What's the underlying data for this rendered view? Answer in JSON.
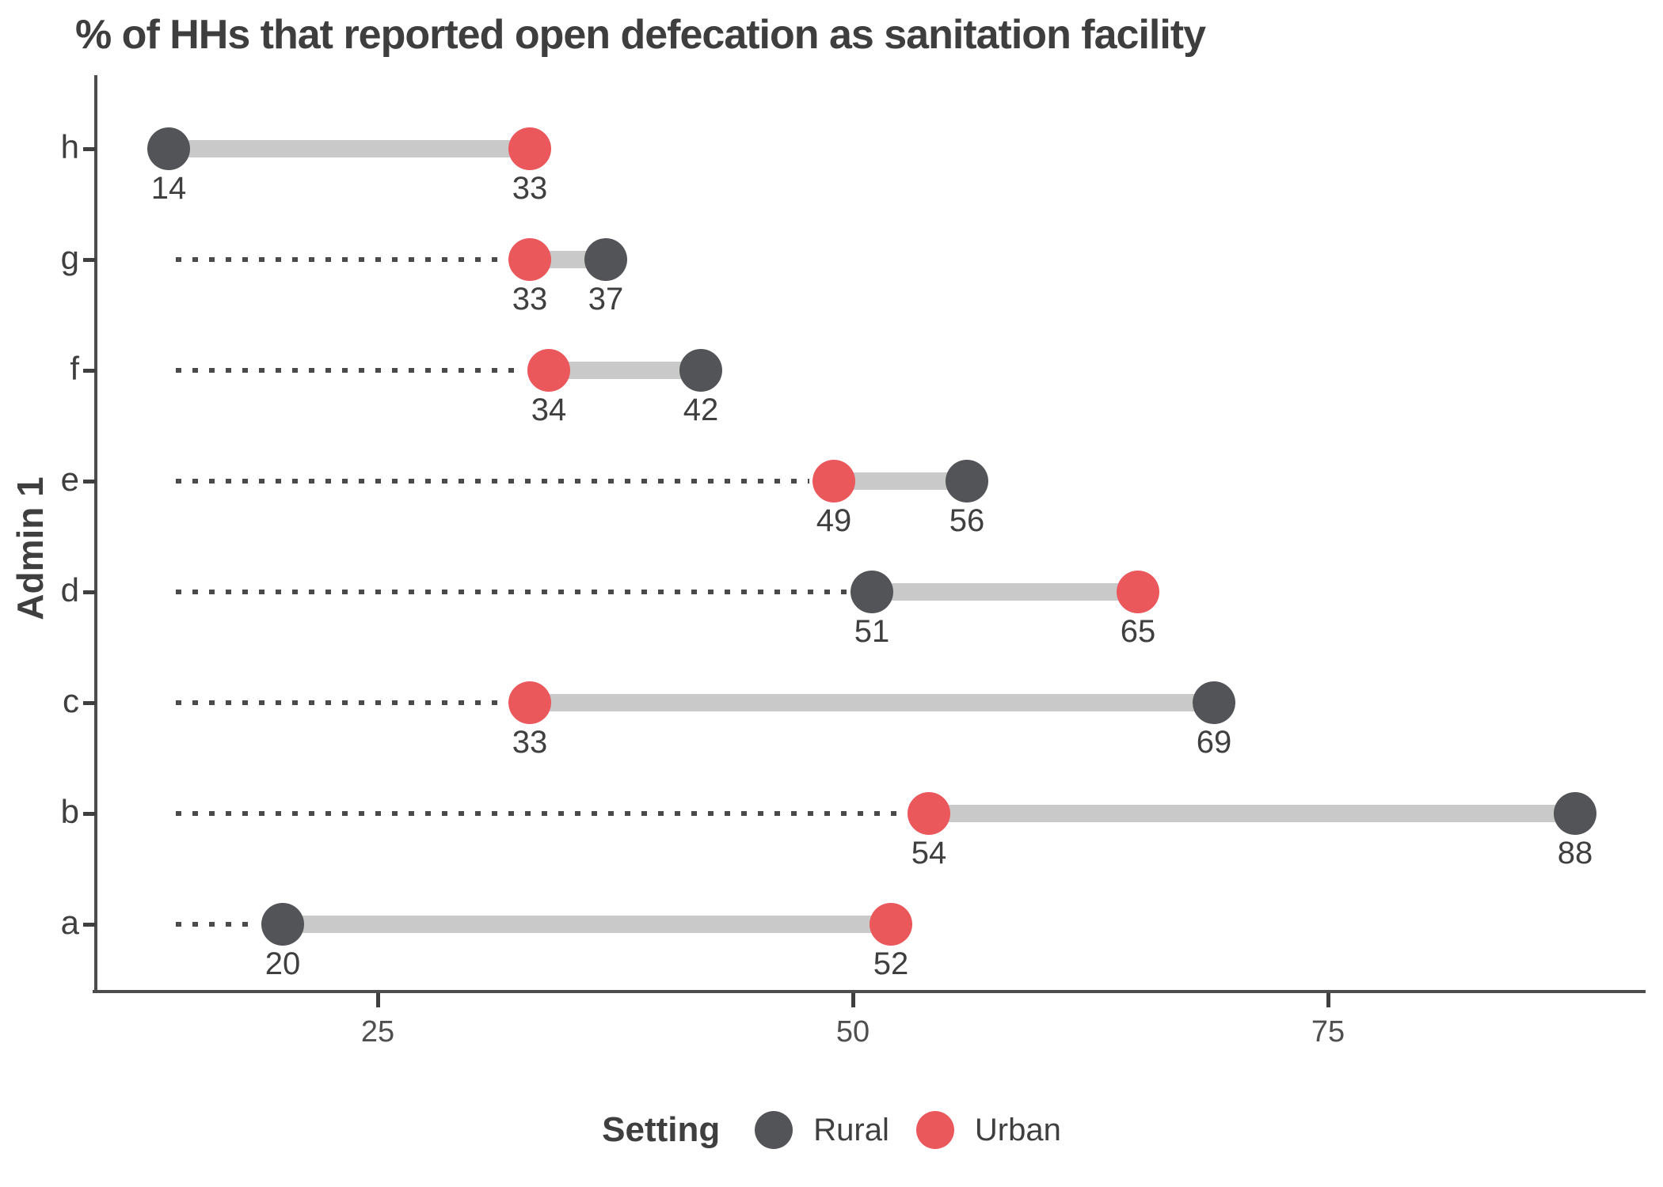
{
  "title": "% of HHs that reported open defecation as sanitation facility",
  "y_axis_label": "Admin 1",
  "legend": {
    "title": "Setting",
    "items": [
      {
        "label": "Rural",
        "color": "#525457"
      },
      {
        "label": "Urban",
        "color": "#ea585c"
      }
    ]
  },
  "colors": {
    "rural": "#525457",
    "urban": "#ea585c",
    "connector": "#c9c9c9",
    "leader": "#4a4a4a",
    "axis": "#4d4d4d",
    "text": "#3f3f3f"
  },
  "chart_data": {
    "type": "dumbbell",
    "orientation": "horizontal",
    "title": "% of HHs that reported open defecation as sanitation facility",
    "ylabel": "Admin 1",
    "xlabel": "",
    "categories_top_to_bottom": [
      "h",
      "g",
      "f",
      "e",
      "d",
      "c",
      "b",
      "a"
    ],
    "series": [
      {
        "name": "Rural",
        "color": "#525457",
        "values": [
          14,
          37,
          42,
          56,
          51,
          69,
          88,
          20
        ]
      },
      {
        "name": "Urban",
        "color": "#ea585c",
        "values": [
          33,
          33,
          34,
          49,
          65,
          33,
          54,
          52
        ]
      }
    ],
    "x_ticks": [
      25,
      50,
      75
    ],
    "xlim": [
      10.2,
      91.7
    ],
    "grid": "off",
    "leader_lines": "dotted from global minimum value (14) to each row's smaller value",
    "point_labels": "value shown under each point",
    "legend_position": "bottom-center"
  }
}
